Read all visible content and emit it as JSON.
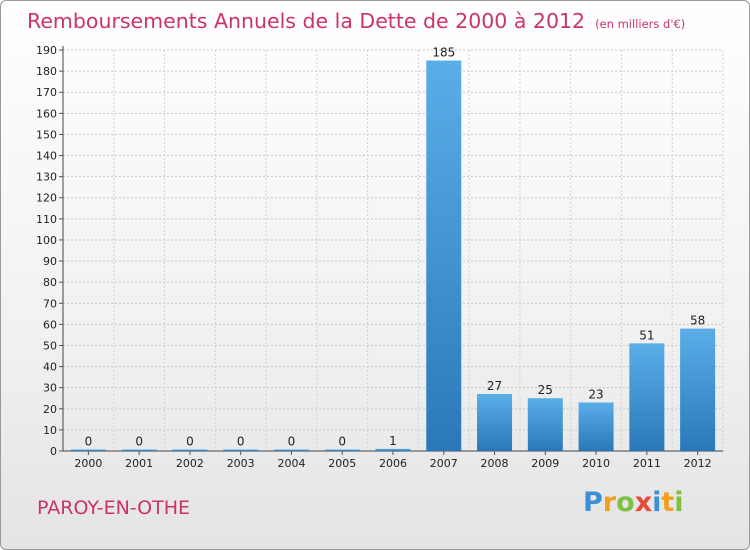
{
  "chart_data": {
    "type": "bar",
    "title": "Remboursements Annuels de la Dette de 2000 à 2012",
    "subtitle": "(en milliers d'€)",
    "categories": [
      "2000",
      "2001",
      "2002",
      "2003",
      "2004",
      "2005",
      "2006",
      "2007",
      "2008",
      "2009",
      "2010",
      "2011",
      "2012"
    ],
    "values": [
      0,
      0,
      0,
      0,
      0,
      0,
      1,
      185,
      27,
      25,
      23,
      51,
      58
    ],
    "value_labels": [
      "0",
      "0",
      "0",
      "0",
      "0",
      "0",
      "1",
      "185",
      "27",
      "25",
      "23",
      "51",
      "58"
    ],
    "ylim": [
      0,
      190
    ],
    "yticks": [
      0,
      10,
      20,
      30,
      40,
      50,
      60,
      70,
      80,
      90,
      100,
      110,
      120,
      130,
      140,
      150,
      160,
      170,
      180,
      190
    ],
    "ytick_labels": [
      "0",
      "10",
      "20",
      "30",
      "40",
      "50",
      "60",
      "70",
      "80",
      "90",
      "100",
      "110",
      "120",
      "130",
      "140",
      "150",
      "160",
      "170",
      "180",
      "190"
    ],
    "xlabel": "",
    "ylabel": "",
    "grid": true,
    "colors": {
      "bar_light": "#5aaee8",
      "bar_dark": "#2a78b8",
      "title": "#cc3366"
    }
  },
  "commune": "PAROY-EN-OTHE",
  "logo": {
    "letters": [
      "P",
      "r",
      "o",
      "x",
      "i",
      "t",
      "i"
    ]
  }
}
